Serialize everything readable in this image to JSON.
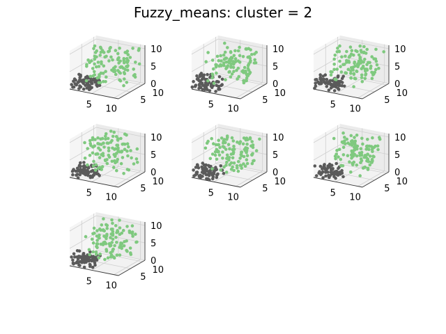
{
  "figure": {
    "title": "Fuzzy_means: cluster = 2"
  },
  "colors": {
    "cluster_0": "#5a5a5a",
    "cluster_1": "#7fc97f",
    "pane": "#f2f2f2",
    "grid": "#cfcfcf"
  },
  "chart_data": [
    {
      "type": "scatter",
      "projection": "3d",
      "clusters": 2,
      "xticks": [
        5,
        10
      ],
      "yticks": [
        5,
        10
      ],
      "zticks": [
        0,
        5,
        10
      ],
      "xlim": [
        0,
        11
      ],
      "ylim": [
        0,
        11
      ],
      "zlim": [
        0,
        11
      ],
      "grid": true
    },
    {
      "type": "scatter",
      "projection": "3d",
      "clusters": 2,
      "xticks": [
        5,
        10
      ],
      "yticks": [
        5,
        10
      ],
      "zticks": [
        0,
        5,
        10
      ],
      "xlim": [
        0,
        11
      ],
      "ylim": [
        0,
        11
      ],
      "zlim": [
        0,
        11
      ],
      "grid": true
    },
    {
      "type": "scatter",
      "projection": "3d",
      "clusters": 2,
      "xticks": [
        5,
        10
      ],
      "yticks": [
        5,
        10
      ],
      "zticks": [
        0,
        5,
        10
      ],
      "xlim": [
        0,
        11
      ],
      "ylim": [
        0,
        11
      ],
      "zlim": [
        0,
        11
      ],
      "grid": true
    },
    {
      "type": "scatter",
      "projection": "3d",
      "clusters": 2,
      "xticks": [
        5,
        10
      ],
      "yticks": [
        5,
        10
      ],
      "zticks": [
        0,
        5,
        10
      ],
      "xlim": [
        0,
        11
      ],
      "ylim": [
        0,
        11
      ],
      "zlim": [
        0,
        11
      ],
      "grid": true
    },
    {
      "type": "scatter",
      "projection": "3d",
      "clusters": 2,
      "xticks": [
        5,
        10
      ],
      "yticks": [
        5,
        10
      ],
      "zticks": [
        0,
        5,
        10
      ],
      "xlim": [
        0,
        11
      ],
      "ylim": [
        0,
        11
      ],
      "zlim": [
        0,
        11
      ],
      "grid": true
    },
    {
      "type": "scatter",
      "projection": "3d",
      "clusters": 2,
      "xticks": [
        5,
        10
      ],
      "yticks": [
        5,
        10
      ],
      "zticks": [
        0,
        5,
        10
      ],
      "xlim": [
        0,
        11
      ],
      "ylim": [
        0,
        11
      ],
      "zlim": [
        0,
        11
      ],
      "grid": true
    },
    {
      "type": "scatter",
      "projection": "3d",
      "clusters": 2,
      "xticks": [
        5,
        10
      ],
      "yticks": [
        5,
        10
      ],
      "zticks": [
        0,
        5,
        10
      ],
      "xlim": [
        0,
        11
      ],
      "ylim": [
        0,
        11
      ],
      "zlim": [
        0,
        11
      ],
      "grid": true
    }
  ]
}
